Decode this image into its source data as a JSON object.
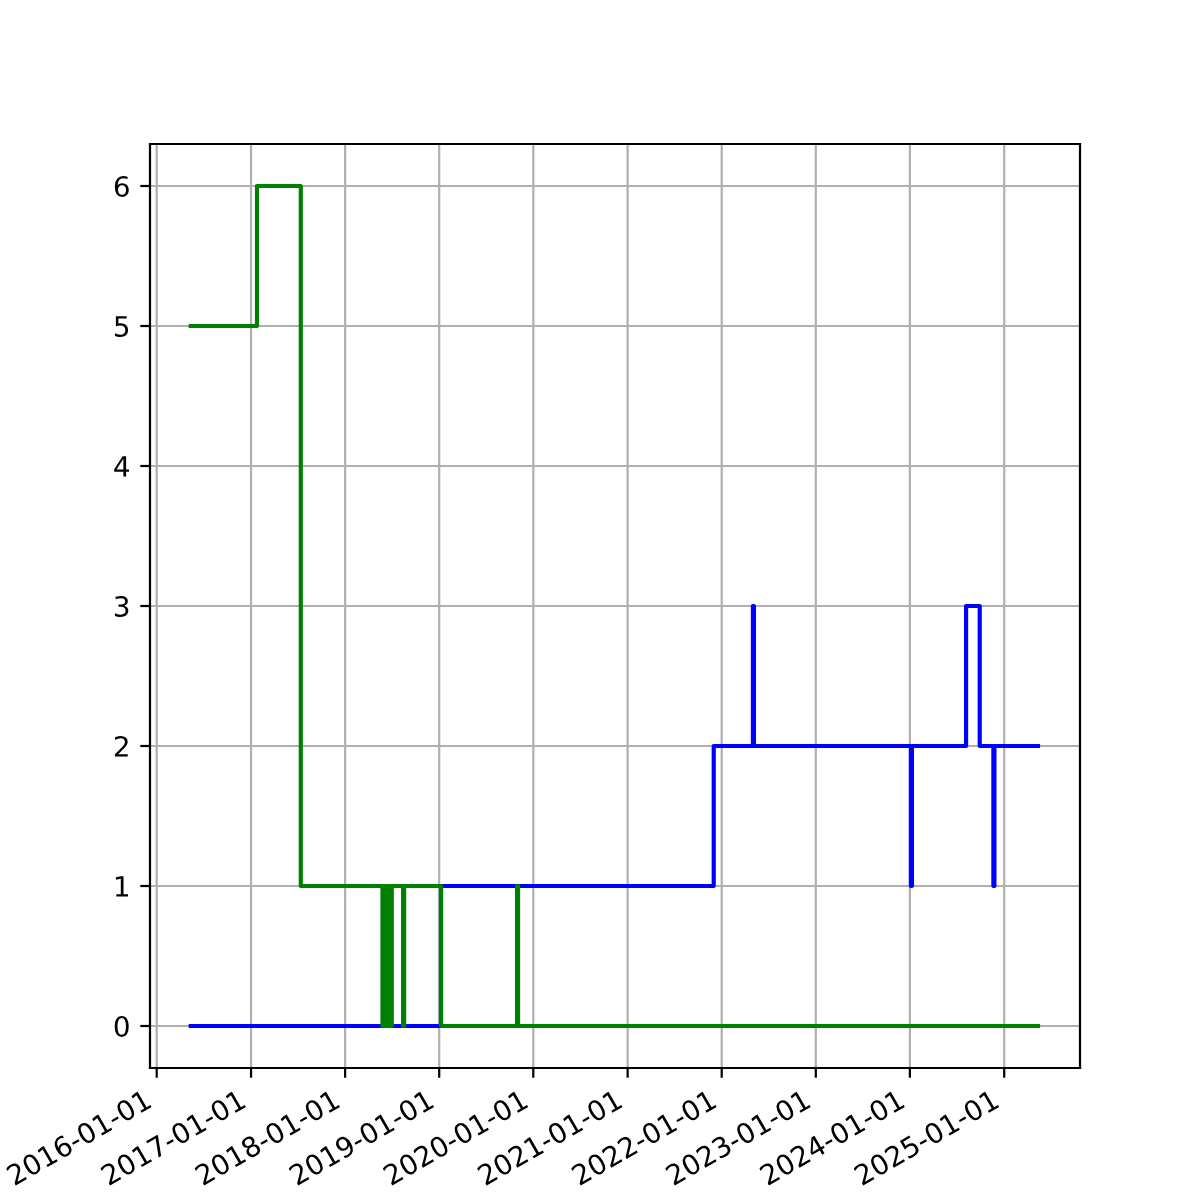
{
  "chart_data": {
    "type": "step",
    "xlim": [
      "2015-12-06",
      "2025-10-22"
    ],
    "xticks": [
      "2016-01-01",
      "2017-01-01",
      "2018-01-01",
      "2019-01-01",
      "2020-01-01",
      "2021-01-01",
      "2022-01-01",
      "2023-01-01",
      "2024-01-01",
      "2025-01-01"
    ],
    "ylim": [
      -0.3,
      6.3
    ],
    "yticks": [
      0,
      1,
      2,
      3,
      4,
      5,
      6
    ],
    "grid": true,
    "legend": false,
    "line_style": "solid",
    "marker": "none",
    "series": [
      {
        "color": "#0000ff",
        "x": [
          "2016-05-12",
          "2018-05-26",
          "2018-06-30",
          "2019-01-08",
          "2021-12-01",
          "2022-05-02",
          "2022-05-06",
          "2024-01-05",
          "2024-01-09",
          "2024-08-06",
          "2024-09-28",
          "2024-11-20",
          "2024-11-24",
          "2025-05-12"
        ],
        "values": [
          0,
          null,
          0,
          1,
          2,
          3,
          2,
          1,
          2,
          3,
          2,
          1,
          2,
          2
        ]
      },
      {
        "color": "#008000",
        "x": [
          "2016-05-12",
          "2017-01-24",
          "2017-07-13",
          "2018-05-26",
          "2018-06-01",
          "2018-06-05",
          "2018-06-10",
          "2018-06-15",
          "2018-06-20",
          "2018-06-25",
          "2018-07-01",
          "2018-08-14",
          "2018-08-18",
          "2019-01-08",
          "2019-10-30",
          "2019-11-03",
          "2025-05-12"
        ],
        "values": [
          5,
          6,
          1,
          0,
          1,
          0,
          1,
          0,
          1,
          0,
          1,
          0,
          1,
          0,
          1,
          0,
          0
        ]
      }
    ]
  }
}
